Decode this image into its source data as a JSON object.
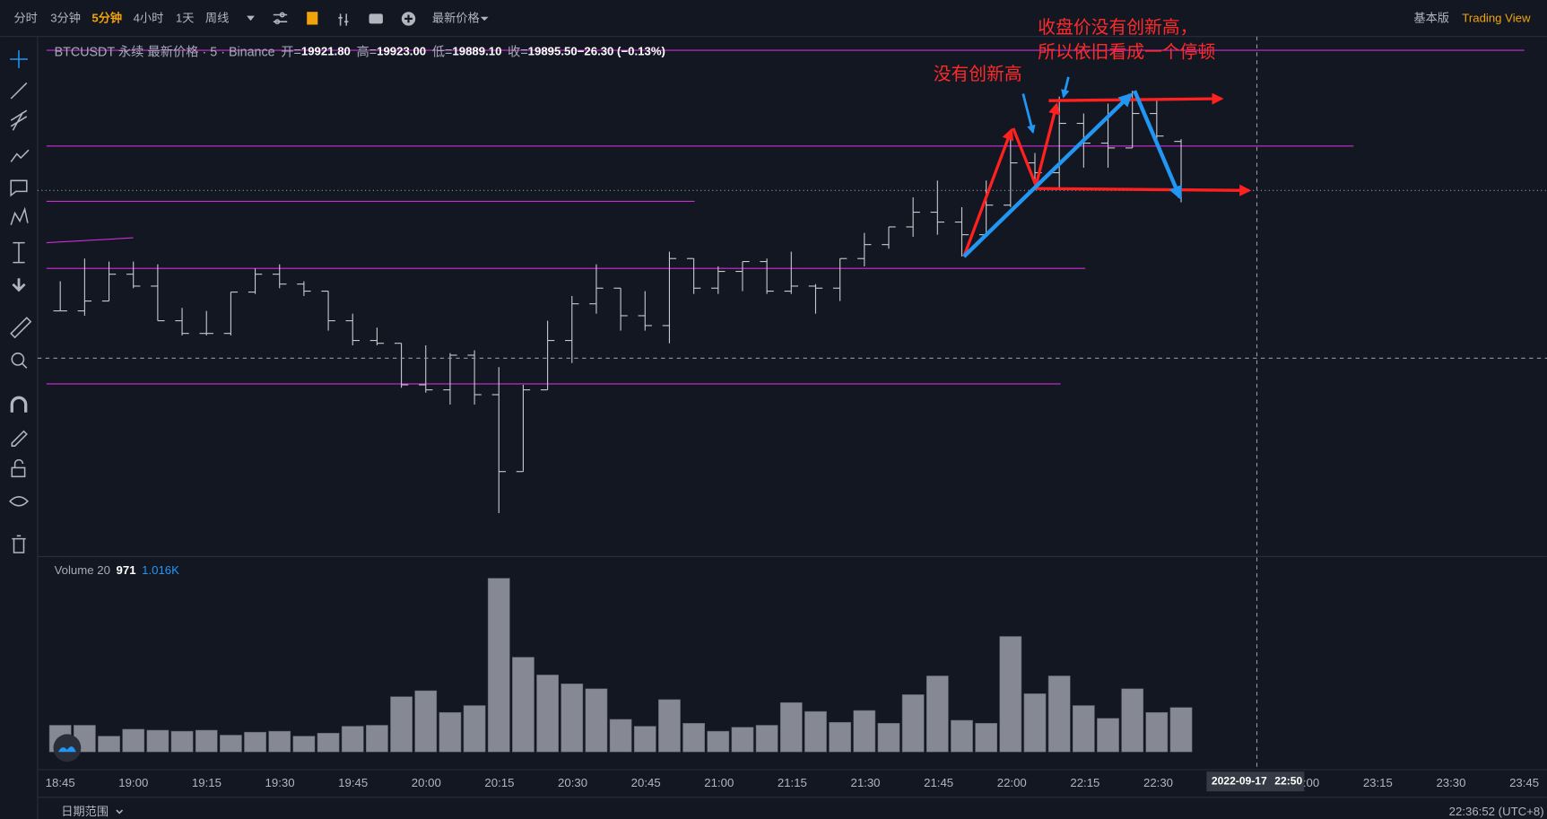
{
  "toolbar": {
    "intervals": [
      "分时",
      "3分钟",
      "5分钟",
      "4小时",
      "1天",
      "周线"
    ],
    "active": "5分钟",
    "price_type": "最新价格",
    "edition": "基本版",
    "brand": "Trading View"
  },
  "legend": {
    "symbol": "BTCUSDT 永续 最新价格 · 5 · Binance",
    "open_label": "开=",
    "open": "19921.80",
    "high_label": "高=",
    "high": "19923.00",
    "low_label": "低=",
    "low": "19889.10",
    "close_label": "收=",
    "close": "19895.50",
    "change": "−26.30 (−0.13%)"
  },
  "annotations": [
    "没有创新高",
    "收盘价没有创新高，",
    "所以依旧看成一个停顿"
  ],
  "chart": {
    "type": "ohlc",
    "bars": [
      [
        19830.8,
        19846.7,
        19830.8,
        19830.8
      ],
      [
        19830.8,
        19858.9,
        19828.2,
        19836.1
      ],
      [
        19836.1,
        19857.3,
        19836.1,
        19850.5
      ],
      [
        19850.5,
        19857.3,
        19843.0,
        19844.1
      ],
      [
        19844.1,
        19855.8,
        19825.5,
        19825.5
      ],
      [
        19825.5,
        19832.4,
        19817.6,
        19818.7
      ],
      [
        19818.7,
        19830.8,
        19817.6,
        19818.7
      ],
      [
        19818.7,
        19840.9,
        19817.6,
        19840.9
      ],
      [
        19840.9,
        19853.6,
        19839.9,
        19850.5
      ],
      [
        19850.5,
        19855.8,
        19843.0,
        19845.2
      ],
      [
        19845.2,
        19846.7,
        19838.8,
        19841.4
      ],
      [
        19841.4,
        19841.4,
        19820.2,
        19825.5
      ],
      [
        19825.5,
        19829.3,
        19812.3,
        19814.9
      ],
      [
        19814.9,
        19821.8,
        19812.3,
        19813.4
      ],
      [
        19813.4,
        19813.4,
        19789.5,
        19791.1
      ],
      [
        19791.1,
        19812.3,
        19786.9,
        19788.4
      ],
      [
        19788.4,
        19808.1,
        19780.5,
        19807.0
      ],
      [
        19807.0,
        19809.6,
        19780.5,
        19785.8
      ],
      [
        19785.8,
        19800.6,
        19722.2,
        19744.5
      ],
      [
        19744.5,
        19791.1,
        19744.5,
        19788.4
      ],
      [
        19788.4,
        19825.5,
        19788.4,
        19814.9
      ],
      [
        19814.9,
        19838.8,
        19802.8,
        19834.6
      ],
      [
        19834.6,
        19855.8,
        19829.3,
        19843.0
      ],
      [
        19843.0,
        19843.0,
        19820.2,
        19828.2
      ],
      [
        19828.2,
        19841.4,
        19820.2,
        19822.9
      ],
      [
        19822.9,
        19862.6,
        19813.4,
        19858.9
      ],
      [
        19858.9,
        19858.9,
        19839.9,
        19843.0
      ],
      [
        19843.0,
        19854.7,
        19839.9,
        19852.0
      ],
      [
        19852.0,
        19857.3,
        19841.4,
        19857.3
      ],
      [
        19857.3,
        19858.9,
        19839.9,
        19841.4
      ],
      [
        19841.4,
        19862.6,
        19839.9,
        19844.1
      ],
      [
        19844.1,
        19845.2,
        19829.3,
        19843.0
      ],
      [
        19843.0,
        19858.9,
        19836.1,
        19858.9
      ],
      [
        19858.9,
        19872.7,
        19854.7,
        19866.4
      ],
      [
        19866.4,
        19875.9,
        19864.2,
        19875.9
      ],
      [
        19875.9,
        19891.8,
        19870.6,
        19883.8
      ],
      [
        19883.8,
        19900.8,
        19871.7,
        19878.5
      ],
      [
        19878.5,
        19886.5,
        19860.0,
        19871.7
      ],
      [
        19871.7,
        19900.8,
        19870.6,
        19887.6
      ],
      [
        19887.6,
        19926.2,
        19886.5,
        19910.3
      ],
      [
        19910.3,
        19915.6,
        19897.1,
        19905.0
      ],
      [
        19905.0,
        19945.9,
        19897.1,
        19931.5
      ],
      [
        19931.5,
        19936.8,
        19907.7,
        19920.9
      ],
      [
        19920.9,
        19942.1,
        19907.7,
        19918.3
      ],
      [
        19918.3,
        19949.0,
        19918.3,
        19936.8
      ],
      [
        19936.8,
        19944.8,
        19919.4,
        19924.7
      ],
      [
        19921.8,
        19923.0,
        19889.1,
        19895.5
      ]
    ]
  },
  "volume": {
    "label": "Volume 20",
    "last": "971",
    "ma": "1.016K",
    "values": [
      583,
      583,
      345,
      496,
      475,
      453,
      475,
      367,
      432,
      453,
      345,
      410,
      561,
      583,
      1208,
      1338,
      863,
      1014,
      3798,
      2071,
      1683,
      1489,
      1381,
      712,
      561,
      1144,
      626,
      453,
      539,
      583,
      1079,
      885,
      647,
      906,
      626,
      1252,
      1662,
      691,
      626,
      2525,
      1273,
      1662,
      1014,
      734,
      1381,
      863,
      971
    ]
  },
  "x_axis_labels": [
    "18:45",
    "19:00",
    "19:15",
    "19:30",
    "19:45",
    "20:00",
    "20:15",
    "20:30",
    "20:45",
    "21:00",
    "21:15",
    "21:30",
    "21:45",
    "22:00",
    "22:15",
    "22:30",
    "22:45",
    "23:00",
    "23:15",
    "23:30",
    "23:45"
  ],
  "crosshair": {
    "date": "2022-09-17",
    "time": "22:50"
  },
  "date_range": "日期范围",
  "clock": "22:36:52 (UTC+8)"
}
